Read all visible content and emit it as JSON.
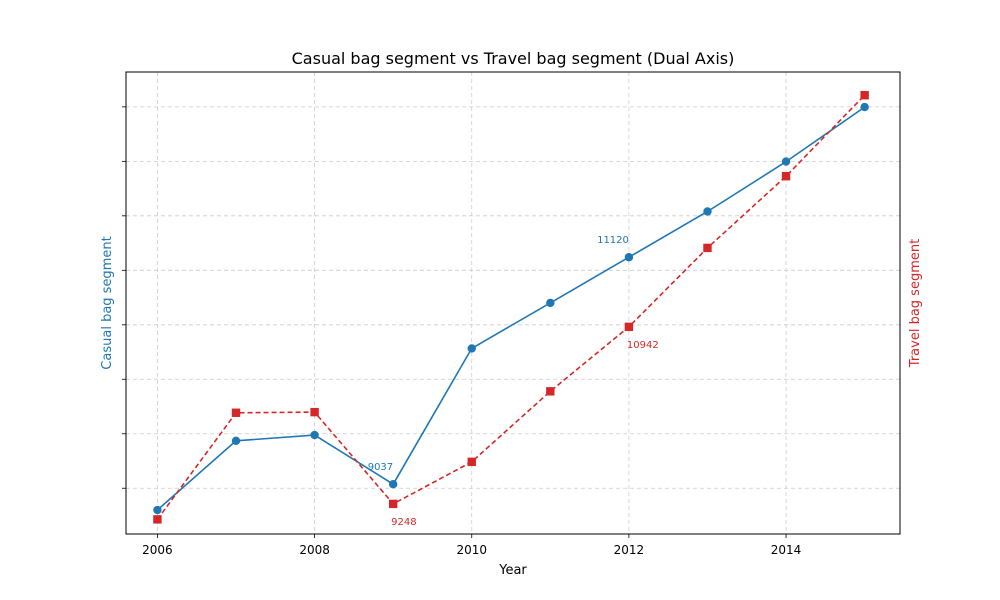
{
  "chart_data": {
    "type": "line",
    "title": "Casual bag segment vs Travel bag segment (Dual Axis)",
    "xlabel": "Year",
    "ylabel_left": "Casual bag segment",
    "ylabel_right": "Travel bag segment",
    "x": [
      2006,
      2007,
      2008,
      2009,
      2010,
      2011,
      2012,
      2013,
      2014,
      2015
    ],
    "x_ticks": [
      "2006",
      "2008",
      "2010",
      "2012",
      "2014"
    ],
    "xlim": [
      2005.6,
      2015.45
    ],
    "series": [
      {
        "name": "Casual bag segment",
        "axis": "left",
        "color": "#1f77b4",
        "line_style": "solid",
        "marker": "circle",
        "values": [
          8800,
          9435,
          9488,
          9037,
          10283,
          10701,
          11120,
          11540,
          11998,
          12498
        ]
      },
      {
        "name": "Travel bag segment",
        "axis": "right",
        "color": "#d62728",
        "line_style": "dashed",
        "marker": "square",
        "values": [
          9100,
          10120,
          10126,
          9248,
          9650,
          10325,
          10942,
          11697,
          12383,
          13158
        ]
      }
    ],
    "ylim_left": [
      8580,
      12820
    ],
    "ylim_right": [
      8960,
      13380
    ],
    "grid": true,
    "legend": "none",
    "annotations": [
      {
        "series": 0,
        "x": 2009,
        "text": "9037",
        "position": "left"
      },
      {
        "series": 1,
        "x": 2009,
        "text": "9248",
        "position": "below"
      },
      {
        "series": 0,
        "x": 2012,
        "text": "11120",
        "position": "left"
      },
      {
        "series": 1,
        "x": 2012,
        "text": "10942",
        "position": "below"
      }
    ]
  }
}
